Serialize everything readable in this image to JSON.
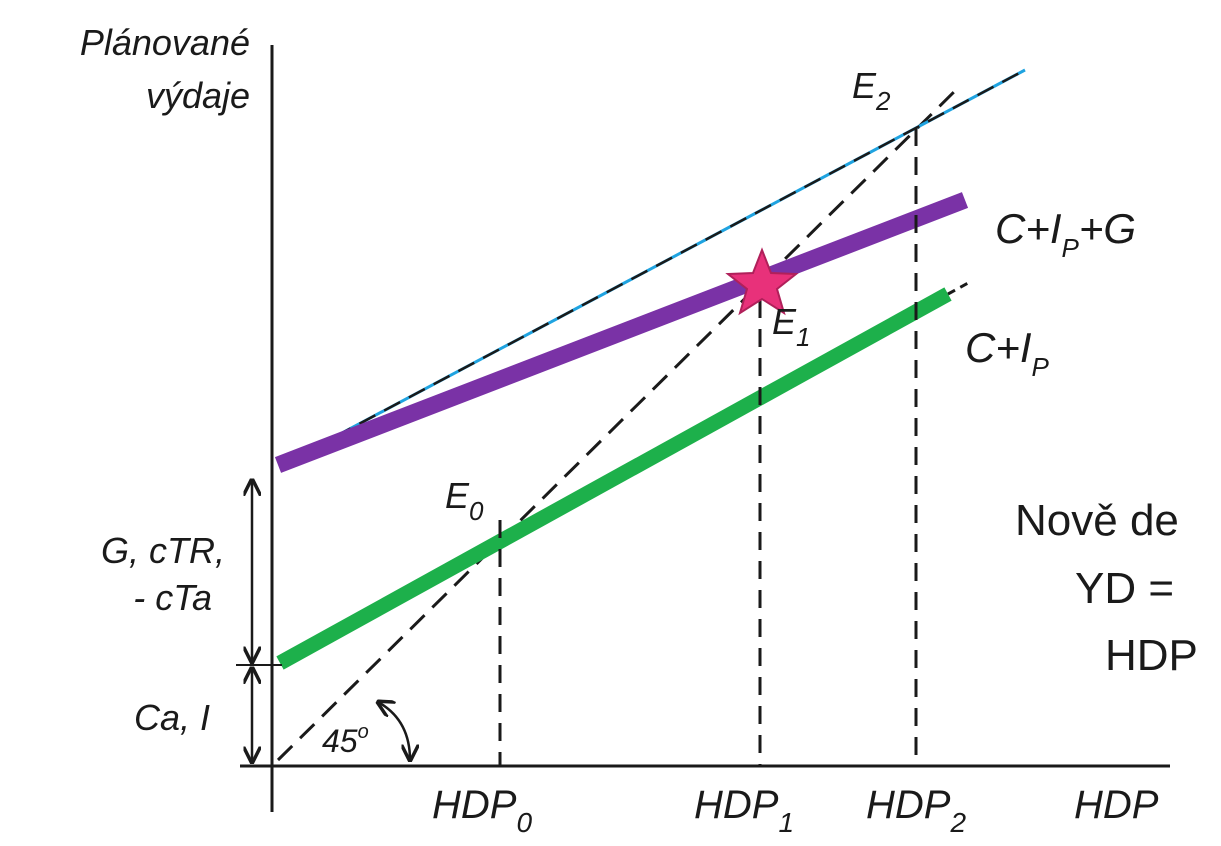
{
  "y_axis_label": [
    "Plánované",
    "výdaje"
  ],
  "x_axis_label": "HDP",
  "lines": {
    "c_ip_g": {
      "label_main": "C+I",
      "label_sub": "P",
      "label_tail": "+G",
      "color": "#7a32a6"
    },
    "c_ip": {
      "label_main": "C+I",
      "label_sub": "P",
      "color": "#1db04b"
    },
    "new_line": {
      "color": "#1fa3e0"
    },
    "diagonal": {
      "color": "#1a1a1a"
    }
  },
  "points": {
    "e0": {
      "main": "E",
      "sub": "0"
    },
    "e1": {
      "main": "E",
      "sub": "1",
      "marker_color": "#e8317a"
    },
    "e2": {
      "main": "E",
      "sub": "2"
    }
  },
  "x_ticks": [
    {
      "main": "HDP",
      "sub": "0"
    },
    {
      "main": "HDP",
      "sub": "1"
    },
    {
      "main": "HDP",
      "sub": "2"
    }
  ],
  "y_brackets": {
    "upper": [
      "G, cTR,",
      "- cTa"
    ],
    "lower": "Ca, I"
  },
  "angle_label": "45",
  "angle_degree": "o",
  "side_text": [
    "Nově de",
    "YD =",
    "HDP"
  ]
}
